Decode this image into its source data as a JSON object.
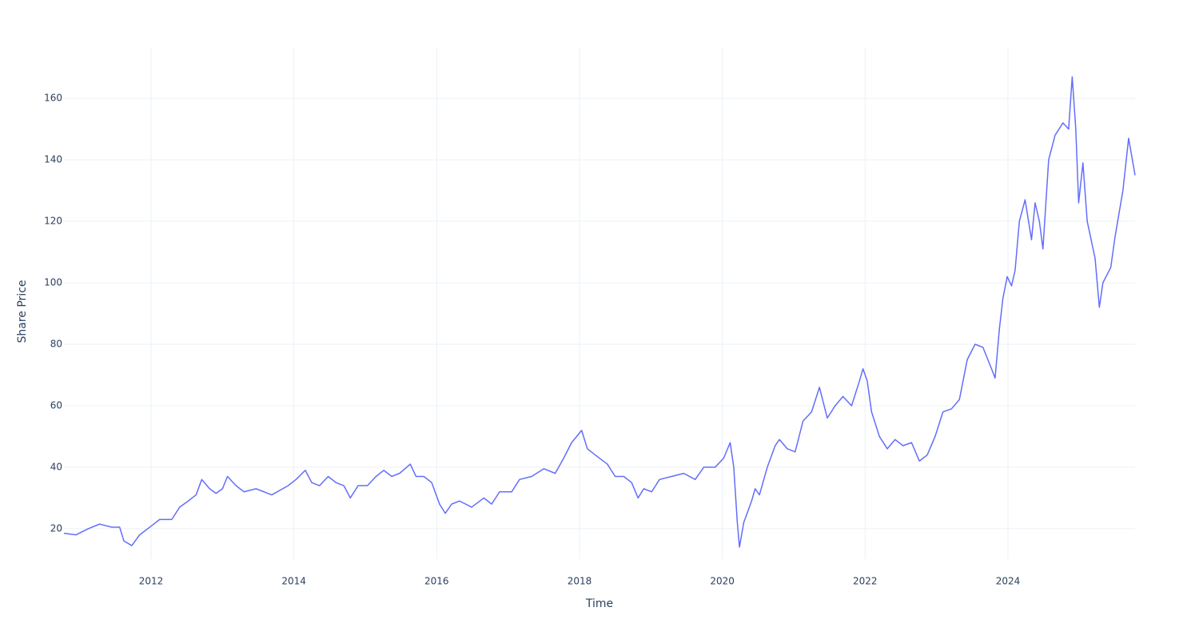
{
  "chart_data": {
    "type": "line",
    "x_label": "Time",
    "y_label": "Share Price",
    "xlim": [
      2010.78,
      2025.78
    ],
    "xticks": [
      2012,
      2014,
      2016,
      2018,
      2020,
      2022,
      2024
    ],
    "ylim": [
      10.1,
      176.4
    ],
    "yticks": [
      20,
      40,
      60,
      80,
      100,
      120,
      140,
      160
    ],
    "grid": true,
    "x": [
      2010.78,
      2010.95,
      2011.12,
      2011.28,
      2011.45,
      2011.56,
      2011.62,
      2011.73,
      2011.84,
      2012.01,
      2012.12,
      2012.29,
      2012.4,
      2012.52,
      2012.63,
      2012.71,
      2012.82,
      2012.91,
      2013.0,
      2013.07,
      2013.19,
      2013.3,
      2013.47,
      2013.69,
      2013.92,
      2014.03,
      2014.16,
      2014.25,
      2014.36,
      2014.48,
      2014.59,
      2014.7,
      2014.79,
      2014.9,
      2015.03,
      2015.15,
      2015.26,
      2015.37,
      2015.48,
      2015.63,
      2015.71,
      2015.82,
      2015.93,
      2016.04,
      2016.12,
      2016.21,
      2016.32,
      2016.49,
      2016.66,
      2016.77,
      2016.88,
      2017.05,
      2017.16,
      2017.33,
      2017.5,
      2017.66,
      2017.78,
      2017.89,
      2018.03,
      2018.11,
      2018.22,
      2018.39,
      2018.5,
      2018.62,
      2018.73,
      2018.82,
      2018.9,
      2019.01,
      2019.12,
      2019.29,
      2019.46,
      2019.62,
      2019.74,
      2019.9,
      2020.02,
      2020.11,
      2020.16,
      2020.21,
      2020.24,
      2020.3,
      2020.41,
      2020.46,
      2020.52,
      2020.63,
      2020.74,
      2020.8,
      2020.91,
      2021.02,
      2021.13,
      2021.25,
      2021.36,
      2021.47,
      2021.58,
      2021.69,
      2021.81,
      2021.92,
      2021.97,
      2022.03,
      2022.09,
      2022.2,
      2022.31,
      2022.42,
      2022.53,
      2022.65,
      2022.76,
      2022.87,
      2022.98,
      2023.09,
      2023.21,
      2023.32,
      2023.43,
      2023.54,
      2023.65,
      2023.77,
      2023.82,
      2023.88,
      2023.93,
      2023.99,
      2024.05,
      2024.1,
      2024.16,
      2024.24,
      2024.33,
      2024.38,
      2024.44,
      2024.49,
      2024.57,
      2024.66,
      2024.77,
      2024.85,
      2024.9,
      2024.95,
      2024.99,
      2025.05,
      2025.11,
      2025.22,
      2025.28,
      2025.33,
      2025.44,
      2025.5,
      2025.61,
      2025.69,
      2025.78
    ],
    "series": [
      {
        "name": "Share Price",
        "color": "#636efa",
        "values": [
          18.5,
          18,
          20,
          21.5,
          20.5,
          20.5,
          16,
          14.5,
          18,
          21,
          23,
          23,
          27,
          29,
          31,
          36,
          33,
          31.5,
          33,
          37,
          34,
          32,
          33,
          31,
          34,
          36,
          39,
          35,
          34,
          37,
          35,
          34,
          30,
          34,
          34,
          37,
          39,
          37,
          38,
          41,
          37,
          37,
          35,
          28,
          25,
          28,
          29,
          27,
          30,
          28,
          32,
          32,
          36,
          37,
          39.5,
          38,
          43,
          48,
          52,
          46,
          44,
          41,
          37,
          37,
          35,
          30,
          33,
          32,
          36,
          37,
          38,
          36,
          40,
          40,
          43,
          48,
          40,
          22,
          14,
          22,
          29,
          33,
          31,
          40,
          47,
          49,
          46,
          45,
          55,
          58,
          66,
          56,
          60,
          63,
          60,
          68,
          72,
          68,
          58,
          50,
          46,
          49,
          47,
          48,
          42,
          44,
          50,
          58,
          59,
          62,
          75,
          80,
          79,
          72,
          69,
          85,
          95,
          102,
          99,
          104,
          120,
          127,
          114,
          126,
          120,
          111,
          140,
          148,
          152,
          150,
          167,
          150,
          126,
          139,
          120,
          108,
          92,
          100,
          105,
          115,
          130,
          147,
          135
        ]
      }
    ]
  }
}
